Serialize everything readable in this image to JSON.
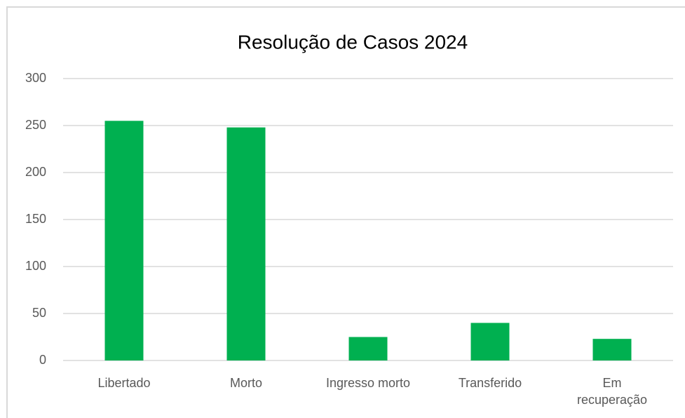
{
  "chart_data": {
    "type": "bar",
    "title": "Resolução de Casos 2024",
    "categories": [
      "Libertado",
      "Morto",
      "Ingresso morto",
      "Transferido",
      "Em recuperação"
    ],
    "values": [
      255,
      248,
      25,
      40,
      23
    ],
    "color": "#00b050",
    "ylim": [
      0,
      300
    ],
    "yticks": [
      0,
      50,
      100,
      150,
      200,
      250,
      300
    ],
    "grid": true
  }
}
